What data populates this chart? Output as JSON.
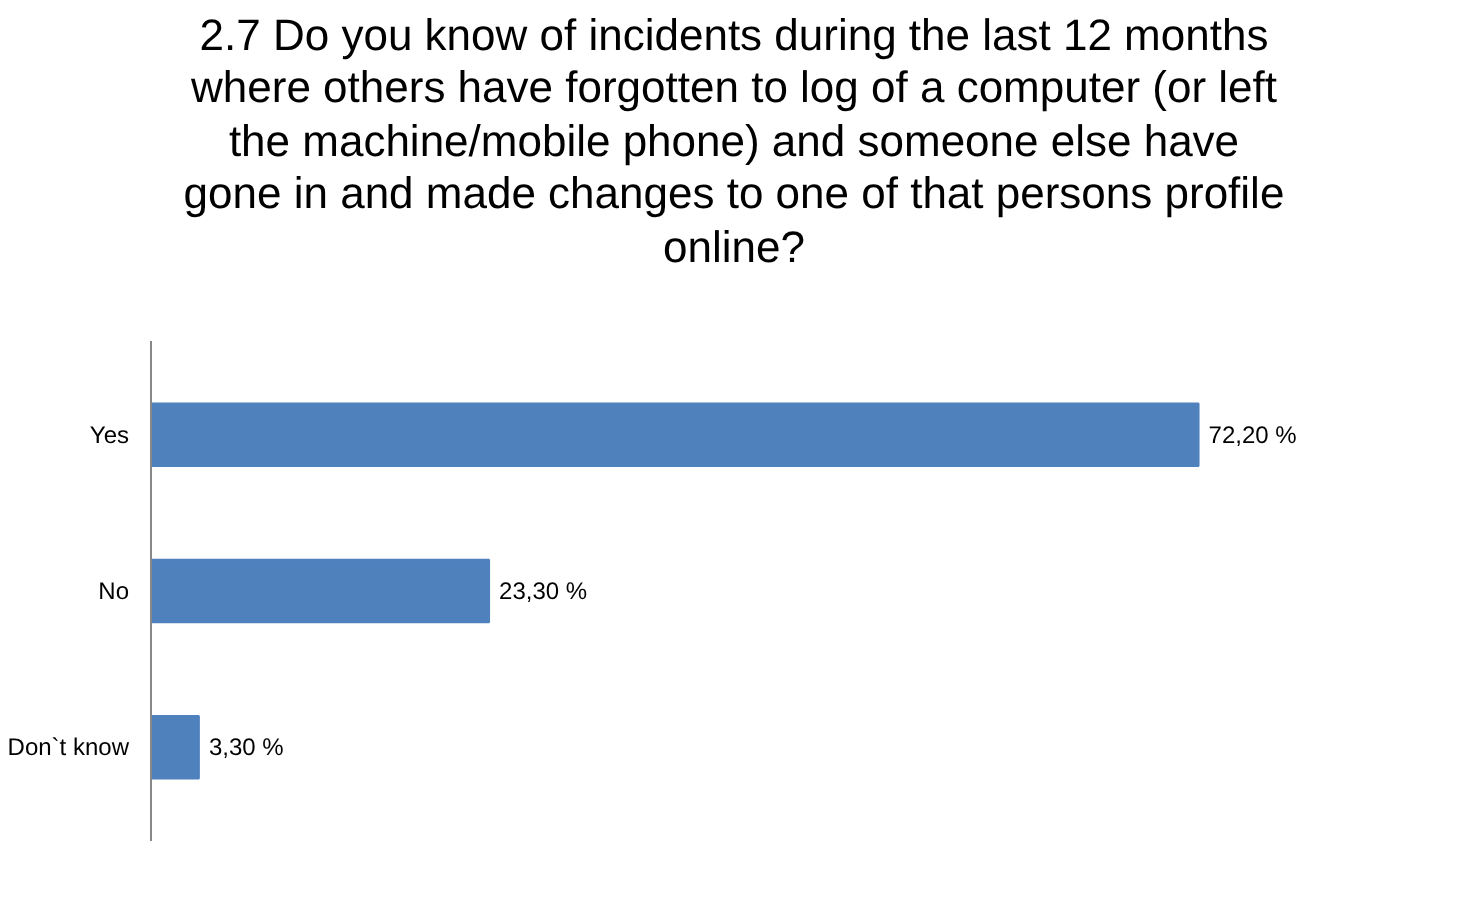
{
  "chart_data": {
    "type": "bar",
    "orientation": "horizontal",
    "title": "2.7 Do you know of incidents during the last 12 months where others have forgotten to log of a computer (or left the machine/mobile phone) and someone else have gone in and made changes to one of that persons profile online?",
    "categories": [
      "Yes",
      "No",
      "Don`t know"
    ],
    "values": [
      72.2,
      23.3,
      3.3
    ],
    "value_labels": [
      "72,20 %",
      "23,30 %",
      "3,30 %"
    ],
    "color": "#4f81bd",
    "grid": false,
    "tick_labels": "y"
  }
}
